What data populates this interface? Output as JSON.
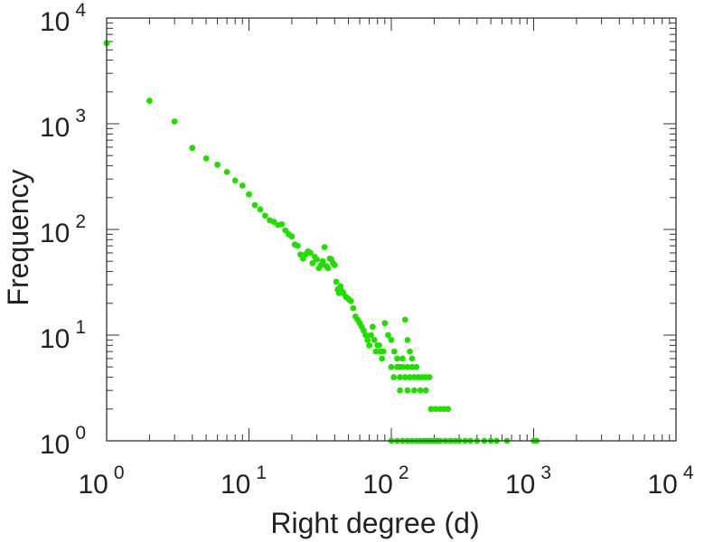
{
  "chart_data": {
    "type": "scatter",
    "title": "",
    "xlabel": "Right degree (d)",
    "ylabel": "Frequency",
    "xscale": "log",
    "yscale": "log",
    "xlim": [
      1,
      10000
    ],
    "ylim": [
      1,
      10000
    ],
    "x_ticks": [
      {
        "base": "10",
        "exp": "0"
      },
      {
        "base": "10",
        "exp": "1"
      },
      {
        "base": "10",
        "exp": "2"
      },
      {
        "base": "10",
        "exp": "3"
      },
      {
        "base": "10",
        "exp": "4"
      }
    ],
    "y_ticks": [
      {
        "base": "10",
        "exp": "0"
      },
      {
        "base": "10",
        "exp": "1"
      },
      {
        "base": "10",
        "exp": "2"
      },
      {
        "base": "10",
        "exp": "3"
      },
      {
        "base": "10",
        "exp": "4"
      }
    ],
    "grid": false,
    "legend": "none",
    "marker_color": "#22dd00",
    "series": [
      {
        "x": [
          1,
          2,
          3,
          4,
          5,
          6,
          7,
          8,
          9,
          10,
          11,
          12,
          13,
          14,
          15,
          16,
          17,
          18,
          19,
          20,
          21,
          22,
          23,
          24,
          25,
          26,
          27,
          28,
          29,
          30,
          31,
          32,
          33,
          34,
          35,
          36,
          37,
          38,
          39,
          40,
          41,
          42,
          43,
          44,
          45,
          46,
          48,
          50,
          52,
          54,
          56,
          58,
          60,
          62,
          64,
          66,
          68,
          70,
          72,
          74,
          76,
          78,
          80,
          82,
          84,
          86,
          88,
          90,
          95,
          100,
          105,
          110,
          115,
          120,
          125,
          130,
          135,
          140,
          100,
          110,
          120,
          130,
          140,
          150,
          104,
          115,
          125,
          135,
          145,
          155,
          165,
          175,
          185,
          115,
          130,
          145,
          160,
          175,
          190,
          205,
          220,
          235,
          250,
          100,
          110,
          120,
          130,
          140,
          150,
          160,
          170,
          180,
          190,
          200,
          210,
          220,
          240,
          260,
          280,
          300,
          330,
          360,
          400,
          450,
          500,
          550,
          650,
          1000,
          1050
        ],
        "y": [
          5800,
          1650,
          1050,
          590,
          470,
          410,
          350,
          290,
          260,
          215,
          170,
          155,
          135,
          122,
          118,
          110,
          112,
          98,
          90,
          86,
          72,
          70,
          58,
          53,
          58,
          62,
          60,
          48,
          55,
          52,
          43,
          46,
          50,
          68,
          45,
          43,
          53,
          52,
          48,
          46,
          32,
          27,
          25,
          29,
          26,
          25,
          23,
          22,
          21,
          18,
          15,
          14,
          13,
          12,
          11,
          10,
          9,
          8,
          10,
          12,
          9,
          7,
          8,
          8,
          7,
          6,
          7,
          13,
          10,
          9,
          7,
          6,
          5,
          6,
          14,
          9,
          7,
          6,
          5,
          5,
          5,
          5,
          5,
          5,
          4,
          4,
          4,
          4,
          4,
          4,
          4,
          4,
          4,
          3,
          3,
          3,
          3,
          3,
          2,
          2,
          2,
          2,
          2,
          1,
          1,
          1,
          1,
          1,
          1,
          1,
          1,
          1,
          1,
          1,
          1,
          1,
          1,
          1,
          1,
          1,
          1,
          1,
          1,
          1,
          1,
          1,
          1,
          1,
          1
        ]
      }
    ]
  }
}
